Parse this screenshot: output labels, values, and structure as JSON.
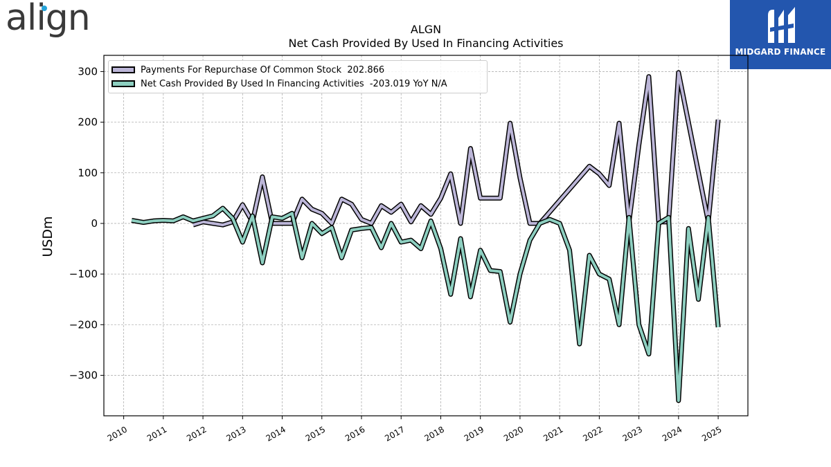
{
  "logos": {
    "left_text": "align",
    "right_text": "MIDGARD FINANCE"
  },
  "colors": {
    "series_repurchase": "#bcb6d8",
    "series_financing": "#8dcfc0",
    "brand_blue": "#2356ae",
    "align_dot": "#25a3d9"
  },
  "chart_data": {
    "type": "line",
    "title": "ALGN",
    "subtitle": "Net Cash Provided By Used In Financing Activities",
    "ylabel": "USDm",
    "ylim": [
      -380,
      332
    ],
    "xlim": [
      2009.5,
      2025.75
    ],
    "yticks": [
      300,
      200,
      100,
      0,
      -100,
      -200,
      -300
    ],
    "ytick_labels": [
      "300",
      "200",
      "100",
      "0",
      "−100",
      "−200",
      "−300"
    ],
    "xticks": [
      2010,
      2011,
      2012,
      2013,
      2014,
      2015,
      2016,
      2017,
      2018,
      2019,
      2020,
      2021,
      2022,
      2023,
      2024,
      2025
    ],
    "xtick_labels": [
      "2010",
      "2011",
      "2012",
      "2013",
      "2014",
      "2015",
      "2016",
      "2017",
      "2018",
      "2019",
      "2020",
      "2021",
      "2022",
      "2023",
      "2024",
      "2025"
    ],
    "grid": true,
    "legend_position": "top-left",
    "series": [
      {
        "name": "Payments For Repurchase Of Common Stock",
        "legend_label": "Payments For Repurchase Of Common Stock  202.866",
        "x": [
          2011.75,
          2012.0,
          2012.25,
          2012.5,
          2012.75,
          2013.0,
          2013.25,
          2013.5,
          2013.75,
          2014.0,
          2014.25,
          2014.5,
          2014.75,
          2015.0,
          2015.25,
          2015.5,
          2015.75,
          2016.0,
          2016.25,
          2016.5,
          2016.75,
          2017.0,
          2017.25,
          2017.5,
          2017.75,
          2018.0,
          2018.25,
          2018.5,
          2018.75,
          2019.0,
          2019.25,
          2019.5,
          2019.75,
          2020.0,
          2020.25,
          2020.5,
          2021.75,
          2022.0,
          2022.25,
          2022.5,
          2022.75,
          2023.0,
          2023.25,
          2023.5,
          2023.75,
          2024.0,
          2024.75,
          2025.0
        ],
        "y": [
          -3,
          3,
          0,
          -3,
          3,
          37,
          3,
          92,
          0,
          0,
          0,
          48,
          28,
          20,
          0,
          48,
          38,
          8,
          0,
          35,
          22,
          38,
          3,
          35,
          18,
          50,
          98,
          0,
          148,
          50,
          50,
          50,
          198,
          90,
          0,
          0,
          113,
          98,
          75,
          198,
          3,
          155,
          290,
          3,
          3,
          298,
          3,
          205
        ]
      },
      {
        "name": "Net Cash Provided By Used In Financing Activities",
        "legend_label": "Net Cash Provided By Used In Financing Activities  -203.019 YoY N/A",
        "x": [
          2010.2,
          2010.5,
          2010.75,
          2011.0,
          2011.25,
          2011.5,
          2011.75,
          2012.0,
          2012.25,
          2012.5,
          2012.75,
          2013.0,
          2013.25,
          2013.5,
          2013.75,
          2014.0,
          2014.25,
          2014.5,
          2014.75,
          2015.0,
          2015.25,
          2015.5,
          2015.75,
          2016.0,
          2016.25,
          2016.5,
          2016.75,
          2017.0,
          2017.25,
          2017.5,
          2017.75,
          2018.0,
          2018.25,
          2018.5,
          2018.75,
          2019.0,
          2019.25,
          2019.5,
          2019.75,
          2020.0,
          2020.25,
          2020.5,
          2020.75,
          2021.0,
          2021.25,
          2021.5,
          2021.75,
          2022.0,
          2022.25,
          2022.5,
          2022.75,
          2023.0,
          2023.25,
          2023.5,
          2023.75,
          2024.0,
          2024.25,
          2024.5,
          2024.75,
          2025.0
        ],
        "y": [
          6,
          2,
          5,
          6,
          5,
          13,
          5,
          10,
          15,
          30,
          10,
          -37,
          15,
          -78,
          13,
          10,
          20,
          -68,
          0,
          -20,
          -8,
          -68,
          -13,
          -10,
          -8,
          -48,
          0,
          -37,
          -33,
          -50,
          5,
          -50,
          -140,
          -30,
          -145,
          -53,
          -93,
          -95,
          -195,
          -100,
          -33,
          0,
          8,
          0,
          -53,
          -238,
          -63,
          -100,
          -110,
          -200,
          12,
          -200,
          -258,
          0,
          12,
          -350,
          -10,
          -150,
          12,
          -205
        ]
      }
    ]
  }
}
